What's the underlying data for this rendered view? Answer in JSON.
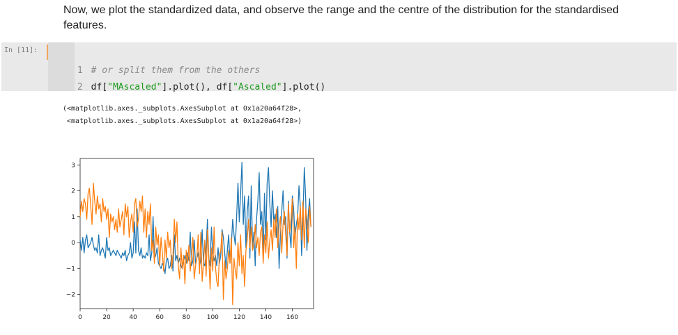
{
  "markdown": {
    "text": "Now, we plot the standardized data, and observe the range and the centre of the distribution for the standardised features."
  },
  "cell": {
    "prompt": "In [11]:",
    "lines": [
      {
        "number": "1",
        "comment": "# or split them from the others"
      },
      {
        "number": "2",
        "parts": {
          "a": "df[",
          "b": "\"MAscaled\"",
          "c": "].plot(), df[",
          "d": "\"Ascaled\"",
          "e": "].plot()"
        }
      }
    ]
  },
  "output": {
    "lines": [
      "(<matplotlib.axes._subplots.AxesSubplot at 0x1a20a64f28>,",
      " <matplotlib.axes._subplots.AxesSubplot at 0x1a20a64f28>)"
    ]
  },
  "chart_data": {
    "type": "line",
    "xlim": [
      0,
      176
    ],
    "ylim": [
      -2.55,
      3.25
    ],
    "xticks": [
      "0",
      "20",
      "40",
      "60",
      "80",
      "100",
      "120",
      "140",
      "160"
    ],
    "yticks": [
      "3",
      "2",
      "1",
      "0",
      "−1",
      "−2"
    ],
    "grid": false,
    "colors": [
      "#1f77b4",
      "#ff7f0e"
    ],
    "series": [
      {
        "values": [
          0.1,
          -0.3,
          0.2,
          -0.4,
          0.1,
          0.3,
          -0.2,
          -0.1,
          0.0,
          0.2,
          -0.1,
          -0.3,
          -0.2,
          -0.4,
          0.3,
          -0.5,
          -0.3,
          -0.2,
          -0.4,
          -0.6,
          0.2,
          -0.3,
          -0.2,
          -0.5,
          -0.4,
          -0.3,
          -0.4,
          -0.5,
          -0.3,
          -0.4,
          -0.5,
          -0.6,
          -0.4,
          -0.5,
          -0.3,
          -0.7,
          -0.5,
          -0.4,
          0.0,
          -0.6,
          -0.4,
          0.8,
          -0.4,
          1.3,
          -0.3,
          -0.5,
          -0.2,
          -0.6,
          -0.5,
          -0.6,
          -0.4,
          -0.5,
          0.3,
          -0.7,
          -0.4,
          1.0,
          -0.6,
          -0.5,
          -0.2,
          -0.8,
          -0.9,
          -1.0,
          -0.8,
          -0.9,
          -1.2,
          -0.7,
          -0.6,
          -1.0,
          -0.9,
          -0.5,
          -1.1,
          0.3,
          -0.7,
          -0.5,
          -0.8,
          -0.6,
          -0.9,
          -1.0,
          -0.7,
          -0.5,
          -0.8,
          -0.4,
          -0.7,
          0.4,
          -0.9,
          -0.7,
          0.1,
          -0.8,
          -0.6,
          -0.4,
          -0.9,
          -0.7,
          0.5,
          -0.8,
          -0.9,
          -0.2,
          0.9,
          -0.6,
          -0.9,
          0.6,
          -0.4,
          -0.7,
          -0.5,
          -0.9,
          -0.2,
          -0.8,
          -0.5,
          0.5,
          0.2,
          -0.4,
          -1.0,
          -0.3,
          0.3,
          -0.8,
          -0.1,
          0.9,
          0.3,
          -0.1,
          1.0,
          2.3,
          0.8,
          1.9,
          3.1,
          0.7,
          1.8,
          -0.2,
          1.2,
          1.8,
          -0.6,
          2.2,
          -0.2,
          0.4,
          -0.9,
          0.9,
          1.6,
          2.7,
          0.7,
          1.2,
          -0.5,
          1.9,
          0.1,
          2.3,
          2.9,
          1.5,
          0.6,
          2.0,
          0.8,
          1.1,
          0.2,
          1.4,
          -1.0,
          0.3,
          1.2,
          2.0,
          0.7,
          1.0,
          -0.6,
          1.6,
          0.4,
          -0.2,
          1.8,
          1.3,
          0.2,
          0.7,
          1.0,
          2.2,
          1.4,
          -0.5,
          0.9,
          2.9,
          1.8,
          -0.3,
          1.1,
          1.7,
          0.6
        ]
      },
      {
        "values": [
          1.0,
          1.6,
          1.2,
          1.7,
          1.5,
          0.9,
          1.9,
          2.1,
          1.4,
          0.7,
          2.3,
          1.6,
          1.1,
          1.8,
          1.3,
          1.5,
          0.8,
          1.7,
          1.2,
          1.4,
          0.9,
          1.3,
          0.2,
          1.1,
          0.8,
          1.0,
          0.5,
          0.9,
          0.4,
          1.3,
          0.6,
          0.9,
          1.2,
          0.3,
          1.5,
          1.0,
          1.4,
          0.2,
          0.8,
          1.1,
          0.4,
          1.5,
          1.7,
          0.6,
          0.9,
          1.6,
          1.2,
          1.8,
          0.4,
          1.3,
          0.2,
          1.2,
          0.7,
          1.5,
          -0.3,
          0.1,
          -0.8,
          0.6,
          -0.1,
          0.3,
          -0.9,
          0.2,
          -0.4,
          -1.1,
          0.1,
          -0.6,
          0.4,
          -0.2,
          0.1,
          -1.0,
          -0.5,
          0.9,
          0.0,
          0.8,
          -0.9,
          -1.4,
          -0.2,
          -1.0,
          -0.5,
          -1.6,
          -0.3,
          -0.8,
          -0.1,
          -1.1,
          -0.5,
          0.2,
          -1.4,
          -0.9,
          -0.6,
          0.3,
          -1.2,
          0.4,
          -1.5,
          -0.8,
          0.1,
          -1.3,
          0.5,
          -0.6,
          -1.8,
          -0.2,
          -1.1,
          0.6,
          -0.9,
          -1.5,
          -1.7,
          -0.5,
          -0.3,
          0.4,
          -2.2,
          -0.7,
          -1.4,
          -1.0,
          -0.3,
          -0.8,
          0.2,
          -2.4,
          -0.6,
          -1.1,
          -1.4,
          0.0,
          -0.9,
          0.3,
          -1.2,
          -0.5,
          -1.7,
          -0.3,
          0.1,
          0.9,
          -0.2,
          0.6,
          -0.3,
          -0.1,
          0.7,
          -0.2,
          0.2,
          -0.5,
          0.4,
          0.6,
          -0.8,
          0.3,
          -0.4,
          0.8,
          -0.6,
          0.1,
          0.5,
          -0.3,
          0.9,
          0.2,
          1.3,
          -0.2,
          0.6,
          1.0,
          -0.4,
          0.7,
          1.2,
          0.3,
          -0.5,
          1.5,
          0.4,
          0.9,
          1.7,
          -0.2,
          0.6,
          -1.0,
          1.1,
          0.5,
          1.4,
          0.1,
          1.6,
          -0.2,
          1.3,
          0.9,
          0.0,
          1.4,
          0.6
        ]
      }
    ]
  }
}
